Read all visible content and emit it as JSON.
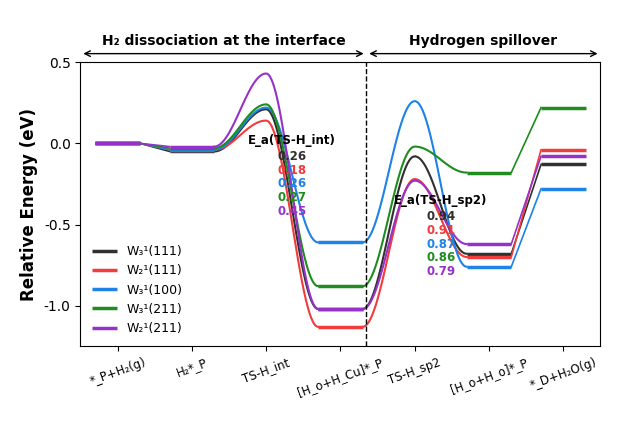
{
  "chart_data": {
    "type": "line",
    "ylabel": "Relative Energy (eV)",
    "categories": [
      "*_P+H₂(g)",
      "H₂*_P",
      "TS-H_int",
      "[H_o+H_Cu]*_P",
      "TS-H_sp2",
      "[H_o+H_o]*_P",
      "*_D+H₂O(g)"
    ],
    "series": [
      {
        "name": "W₃¹(111)",
        "color": "#303030",
        "values": [
          0.0,
          -0.05,
          0.21,
          -1.02,
          -0.08,
          -0.68,
          -0.13
        ]
      },
      {
        "name": "W₂¹(111)",
        "color": "#f03c3c",
        "values": [
          0.0,
          -0.04,
          0.14,
          -1.13,
          -0.22,
          -0.7,
          -0.04
        ]
      },
      {
        "name": "W₃¹(100)",
        "color": "#1e82e6",
        "values": [
          0.0,
          -0.04,
          0.22,
          -0.61,
          0.26,
          -0.76,
          -0.28
        ]
      },
      {
        "name": "W₃¹(211)",
        "color": "#1e8c1e",
        "values": [
          0.0,
          -0.03,
          0.24,
          -0.88,
          -0.02,
          -0.18,
          0.22
        ]
      },
      {
        "name": "W₂¹(211)",
        "color": "#9632c8",
        "values": [
          0.0,
          -0.02,
          0.43,
          -1.02,
          -0.23,
          -0.62,
          -0.08
        ]
      }
    ],
    "annotations": [
      {
        "state": "TS-H_int",
        "label": "E_a(TS-H_int)",
        "values": [
          0.26,
          0.18,
          0.26,
          0.27,
          0.45
        ]
      },
      {
        "state": "TS-H_sp2",
        "label": "E_a(TS-H_sp2)",
        "values": [
          0.94,
          0.91,
          0.87,
          0.86,
          0.79
        ]
      }
    ],
    "sections": [
      "H₂ dissociation at the interface",
      "Hydrogen spillover"
    ],
    "ylim": [
      -1.25,
      0.5
    ],
    "yticks": [
      {
        "value": -1.0,
        "label": "-1.0"
      },
      {
        "value": -0.5,
        "label": "-0.5"
      },
      {
        "value": 0.0,
        "label": "0.0"
      },
      {
        "value": 0.5,
        "label": "0.5"
      }
    ],
    "legend": "lower left"
  }
}
